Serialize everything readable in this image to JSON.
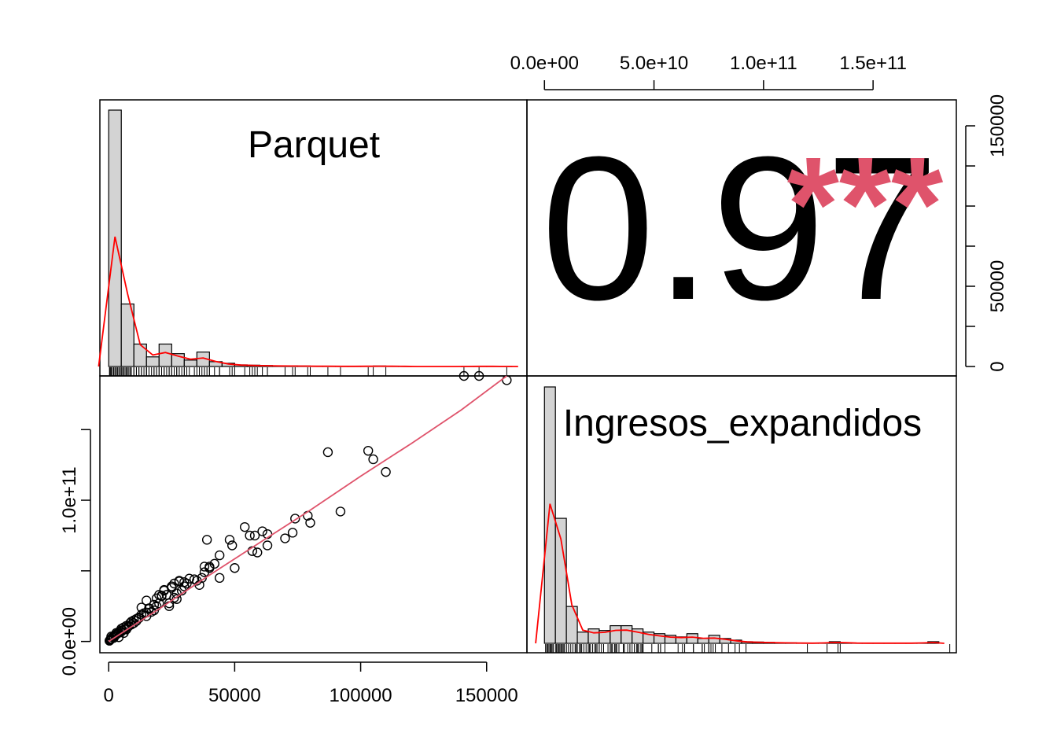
{
  "chart_data": {
    "type": "scatter-matrix",
    "variables": [
      "Parquet",
      "Ingresos_expandidos"
    ],
    "correlation": {
      "value_label": "0.97",
      "significance": "***",
      "value_color": "#000000",
      "significance_color": "#DF536B"
    },
    "axes": {
      "parquet": {
        "ticks": [
          0,
          50000,
          100000,
          150000
        ],
        "tick_labels": [
          "0",
          "50000",
          "100000",
          "150000"
        ],
        "range": [
          -3500,
          166000
        ]
      },
      "ingresos": {
        "ticks": [
          0,
          50000000000,
          100000000000,
          150000000000
        ],
        "tick_labels_top": [
          "0.0e+00",
          "5.0e+10",
          "1.0e+11",
          "1.5e+11"
        ],
        "left_ticks": [
          0,
          50000000000,
          100000000000,
          150000000000
        ],
        "left_tick_labels": [
          {
            "value": 0,
            "label": "0.0e+00"
          },
          {
            "value": 100000000000,
            "label": "1.0e+11"
          }
        ],
        "range": [
          -8000000000,
          188000000000
        ]
      }
    },
    "parquet_histogram": {
      "breaks_start": 0,
      "bin_width": 5000,
      "counts": [
        1600,
        390,
        140,
        60,
        140,
        80,
        40,
        90,
        30,
        20,
        10,
        8,
        6,
        4,
        4,
        3,
        2,
        2,
        1,
        1,
        2,
        3,
        2,
        1,
        0,
        0,
        0,
        0,
        1,
        1,
        1,
        1
      ]
    },
    "ingresos_histogram": {
      "breaks_start": 0,
      "bin_width": 5000000000,
      "counts": [
        1600,
        780,
        230,
        70,
        90,
        80,
        110,
        110,
        90,
        70,
        60,
        50,
        40,
        60,
        30,
        50,
        30,
        20,
        10,
        8,
        6,
        4,
        3,
        2,
        1,
        2,
        10,
        4,
        2,
        1,
        1,
        1,
        1,
        1,
        2,
        10
      ]
    },
    "series": [
      {
        "x": [
          147000,
          141000,
          158000,
          87000,
          103000,
          105000,
          110000,
          92000,
          74000,
          79000,
          80000,
          70000,
          73000,
          54000,
          58000,
          61000,
          63000,
          59000,
          57000,
          56000,
          63000,
          50000,
          48000,
          39000,
          49000,
          44000,
          42000,
          40000,
          40000,
          38000,
          37000,
          38000,
          36000,
          35000,
          44000,
          34000,
          31000,
          30000,
          29000,
          28000,
          27000,
          27000,
          26000,
          25000,
          24000,
          24000,
          22000,
          21000,
          20000,
          20000,
          19000,
          18000,
          17000,
          16000,
          15000,
          15000,
          14000,
          13000,
          12000,
          11000,
          10000,
          10000,
          9000,
          8500,
          8000,
          7500,
          7000,
          6500,
          6000,
          5500,
          5000,
          4500,
          4000,
          3500,
          3000,
          2500,
          2000,
          1500,
          1000,
          800,
          500,
          300,
          5000,
          6000,
          7000,
          4000,
          9000,
          11000,
          12000,
          13000,
          15000,
          16000,
          18000,
          19000,
          21000,
          22000,
          23000,
          25000,
          26000,
          28000,
          30000,
          32000,
          3000,
          2000,
          1000
        ],
        "y": [
          188000000000,
          188000000000,
          185000000000,
          134000000000,
          135000000000,
          129000000000,
          120000000000,
          92000000000,
          87000000000,
          89000000000,
          84000000000,
          73000000000,
          77000000000,
          81000000000,
          75000000000,
          78000000000,
          76000000000,
          63000000000,
          64000000000,
          75000000000,
          68000000000,
          52000000000,
          72000000000,
          72000000000,
          68000000000,
          61000000000,
          55000000000,
          53000000000,
          52000000000,
          49000000000,
          45000000000,
          53000000000,
          40000000000,
          43000000000,
          45000000000,
          44000000000,
          41000000000,
          39000000000,
          36000000000,
          43000000000,
          34000000000,
          30000000000,
          31000000000,
          38000000000,
          27000000000,
          25000000000,
          36000000000,
          32000000000,
          27000000000,
          33000000000,
          25000000000,
          22000000000,
          21000000000,
          23000000000,
          29000000000,
          18000000000,
          20000000000,
          24000000000,
          17000000000,
          16000000000,
          15000000000,
          13000000000,
          12000000000,
          13000000000,
          11000000000,
          10000000000,
          11000000000,
          9000000000,
          10000000000,
          8000000000,
          7000000000,
          7500000000,
          6500000000,
          5500000000,
          5000000000,
          4000000000,
          3500000000,
          3000000000,
          2000000000,
          1500000000,
          1000000000,
          500000000,
          9000000000,
          6000000000,
          8500000000,
          3000000000,
          14000000000,
          14500000000,
          16500000000,
          19000000000,
          20500000000,
          23500000000,
          26000000000,
          30500000000,
          32500000000,
          36500000000,
          33000000000,
          39000000000,
          41000000000,
          42500000000,
          42000000000,
          44500000000,
          6000000000,
          2500000000,
          3500000000
        ]
      }
    ],
    "fit_line": {
      "x": [
        0,
        20000,
        40000,
        60000,
        80000,
        100000,
        120000,
        140000,
        158000
      ],
      "y": [
        0,
        23000000000,
        47000000000,
        70000000000,
        93000000000,
        117000000000,
        140000000000,
        164000000000,
        188000000000
      ],
      "color": "#DF536B"
    },
    "density_color": "#FF0000",
    "histogram_fill": "#D3D3D3"
  }
}
